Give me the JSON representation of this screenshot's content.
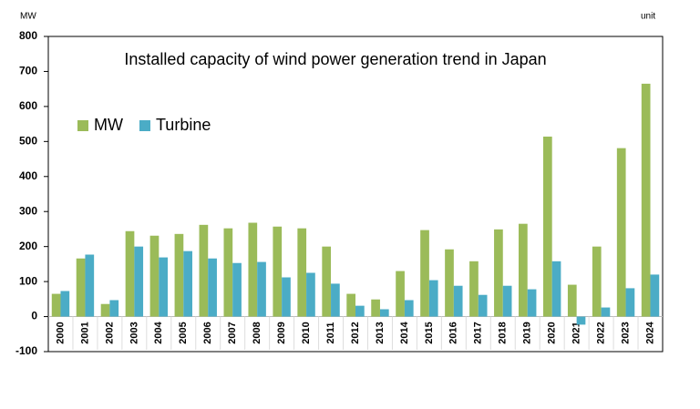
{
  "chart_data": {
    "type": "bar",
    "title": "Installed capacity of wind power generation trend in Japan",
    "y_label": "MW",
    "unit_label": "unit",
    "categories": [
      "2000",
      "2001",
      "2002",
      "2003",
      "2004",
      "2005",
      "2006",
      "2007",
      "2008",
      "2009",
      "2010",
      "2011",
      "2012",
      "2013",
      "2014",
      "2015",
      "2016",
      "2017",
      "2018",
      "2019",
      "2020",
      "2021",
      "2022",
      "2023",
      "2024"
    ],
    "series": [
      {
        "name": "MW",
        "color": "#9bbb59",
        "values": [
          65,
          166,
          36,
          244,
          231,
          236,
          262,
          252,
          268,
          257,
          252,
          200,
          65,
          49,
          130,
          247,
          192,
          158,
          249,
          265,
          514,
          91,
          200,
          481,
          665
        ]
      },
      {
        "name": "Turbine",
        "color": "#4bacc6",
        "values": [
          73,
          177,
          47,
          200,
          169,
          187,
          166,
          153,
          156,
          112,
          125,
          94,
          31,
          21,
          47,
          104,
          88,
          62,
          88,
          78,
          158,
          -23,
          26,
          81,
          120
        ]
      }
    ],
    "ylim": [
      -100,
      800
    ],
    "yticks": [
      -100,
      0,
      100,
      200,
      300,
      400,
      500,
      600,
      700,
      800
    ],
    "grid": false,
    "legend": "upper-left"
  }
}
